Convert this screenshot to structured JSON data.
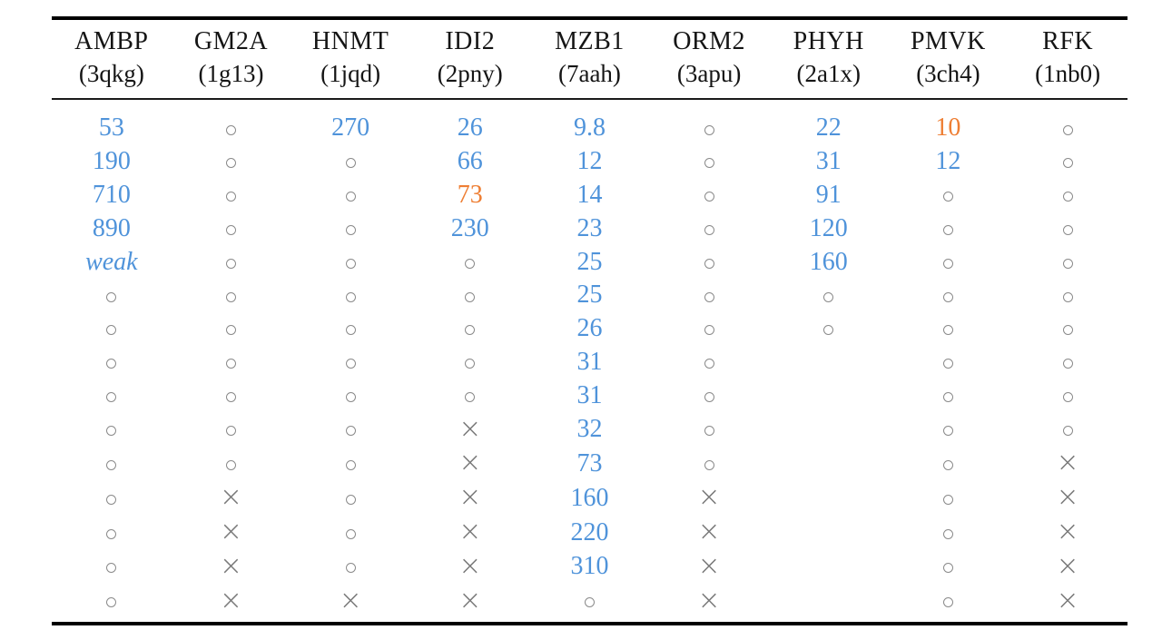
{
  "table": {
    "columns": [
      {
        "gene": "AMBP",
        "pdb": "(3qkg)"
      },
      {
        "gene": "GM2A",
        "pdb": "(1g13)"
      },
      {
        "gene": "HNMT",
        "pdb": "(1jqd)"
      },
      {
        "gene": "IDI2",
        "pdb": "(2pny)"
      },
      {
        "gene": "MZB1",
        "pdb": "(7aah)"
      },
      {
        "gene": "ORM2",
        "pdb": "(3apu)"
      },
      {
        "gene": "PHYH",
        "pdb": "(2a1x)"
      },
      {
        "gene": "PMVK",
        "pdb": "(3ch4)"
      },
      {
        "gene": "RFK",
        "pdb": "(1nb0)"
      }
    ],
    "symbols": {
      "circle": "○",
      "cross": "×"
    },
    "colors": {
      "value_blue": "#4f93da",
      "value_orange": "#ee7e33",
      "marker_gray": "#8a8a8a",
      "rule_black": "#000000"
    },
    "weak_label": "weak",
    "rows": [
      [
        {
          "type": "value",
          "text": "53",
          "color": "blue"
        },
        {
          "type": "circle"
        },
        {
          "type": "value",
          "text": "270",
          "color": "blue"
        },
        {
          "type": "value",
          "text": "26",
          "color": "blue"
        },
        {
          "type": "value",
          "text": "9.8",
          "color": "blue"
        },
        {
          "type": "circle"
        },
        {
          "type": "value",
          "text": "22",
          "color": "blue"
        },
        {
          "type": "value",
          "text": "10",
          "color": "orange"
        },
        {
          "type": "circle"
        }
      ],
      [
        {
          "type": "value",
          "text": "190",
          "color": "blue"
        },
        {
          "type": "circle"
        },
        {
          "type": "circle"
        },
        {
          "type": "value",
          "text": "66",
          "color": "blue"
        },
        {
          "type": "value",
          "text": "12",
          "color": "blue"
        },
        {
          "type": "circle"
        },
        {
          "type": "value",
          "text": "31",
          "color": "blue"
        },
        {
          "type": "value",
          "text": "12",
          "color": "blue"
        },
        {
          "type": "circle"
        }
      ],
      [
        {
          "type": "value",
          "text": "710",
          "color": "blue"
        },
        {
          "type": "circle"
        },
        {
          "type": "circle"
        },
        {
          "type": "value",
          "text": "73",
          "color": "orange"
        },
        {
          "type": "value",
          "text": "14",
          "color": "blue"
        },
        {
          "type": "circle"
        },
        {
          "type": "value",
          "text": "91",
          "color": "blue"
        },
        {
          "type": "circle"
        },
        {
          "type": "circle"
        }
      ],
      [
        {
          "type": "value",
          "text": "890",
          "color": "blue"
        },
        {
          "type": "circle"
        },
        {
          "type": "circle"
        },
        {
          "type": "value",
          "text": "230",
          "color": "blue"
        },
        {
          "type": "value",
          "text": "23",
          "color": "blue"
        },
        {
          "type": "circle"
        },
        {
          "type": "value",
          "text": "120",
          "color": "blue"
        },
        {
          "type": "circle"
        },
        {
          "type": "circle"
        }
      ],
      [
        {
          "type": "weak"
        },
        {
          "type": "circle"
        },
        {
          "type": "circle"
        },
        {
          "type": "circle"
        },
        {
          "type": "value",
          "text": "25",
          "color": "blue"
        },
        {
          "type": "circle"
        },
        {
          "type": "value",
          "text": "160",
          "color": "blue"
        },
        {
          "type": "circle"
        },
        {
          "type": "circle"
        }
      ],
      [
        {
          "type": "circle"
        },
        {
          "type": "circle"
        },
        {
          "type": "circle"
        },
        {
          "type": "circle"
        },
        {
          "type": "value",
          "text": "25",
          "color": "blue"
        },
        {
          "type": "circle"
        },
        {
          "type": "circle"
        },
        {
          "type": "circle"
        },
        {
          "type": "circle"
        }
      ],
      [
        {
          "type": "circle"
        },
        {
          "type": "circle"
        },
        {
          "type": "circle"
        },
        {
          "type": "circle"
        },
        {
          "type": "value",
          "text": "26",
          "color": "blue"
        },
        {
          "type": "circle"
        },
        {
          "type": "circle"
        },
        {
          "type": "circle"
        },
        {
          "type": "circle"
        }
      ],
      [
        {
          "type": "circle"
        },
        {
          "type": "circle"
        },
        {
          "type": "circle"
        },
        {
          "type": "circle"
        },
        {
          "type": "value",
          "text": "31",
          "color": "blue"
        },
        {
          "type": "circle"
        },
        {
          "type": "empty"
        },
        {
          "type": "circle"
        },
        {
          "type": "circle"
        }
      ],
      [
        {
          "type": "circle"
        },
        {
          "type": "circle"
        },
        {
          "type": "circle"
        },
        {
          "type": "circle"
        },
        {
          "type": "value",
          "text": "31",
          "color": "blue"
        },
        {
          "type": "circle"
        },
        {
          "type": "empty"
        },
        {
          "type": "circle"
        },
        {
          "type": "circle"
        }
      ],
      [
        {
          "type": "circle"
        },
        {
          "type": "circle"
        },
        {
          "type": "circle"
        },
        {
          "type": "cross"
        },
        {
          "type": "value",
          "text": "32",
          "color": "blue"
        },
        {
          "type": "circle"
        },
        {
          "type": "empty"
        },
        {
          "type": "circle"
        },
        {
          "type": "circle"
        }
      ],
      [
        {
          "type": "circle"
        },
        {
          "type": "circle"
        },
        {
          "type": "circle"
        },
        {
          "type": "cross"
        },
        {
          "type": "value",
          "text": "73",
          "color": "blue"
        },
        {
          "type": "circle"
        },
        {
          "type": "empty"
        },
        {
          "type": "circle"
        },
        {
          "type": "cross"
        }
      ],
      [
        {
          "type": "circle"
        },
        {
          "type": "cross"
        },
        {
          "type": "circle"
        },
        {
          "type": "cross"
        },
        {
          "type": "value",
          "text": "160",
          "color": "blue"
        },
        {
          "type": "cross"
        },
        {
          "type": "empty"
        },
        {
          "type": "circle"
        },
        {
          "type": "cross"
        }
      ],
      [
        {
          "type": "circle"
        },
        {
          "type": "cross"
        },
        {
          "type": "circle"
        },
        {
          "type": "cross"
        },
        {
          "type": "value",
          "text": "220",
          "color": "blue"
        },
        {
          "type": "cross"
        },
        {
          "type": "empty"
        },
        {
          "type": "circle"
        },
        {
          "type": "cross"
        }
      ],
      [
        {
          "type": "circle"
        },
        {
          "type": "cross"
        },
        {
          "type": "circle"
        },
        {
          "type": "cross"
        },
        {
          "type": "value",
          "text": "310",
          "color": "blue"
        },
        {
          "type": "cross"
        },
        {
          "type": "empty"
        },
        {
          "type": "circle"
        },
        {
          "type": "cross"
        }
      ],
      [
        {
          "type": "circle"
        },
        {
          "type": "cross"
        },
        {
          "type": "cross"
        },
        {
          "type": "cross"
        },
        {
          "type": "circle"
        },
        {
          "type": "cross"
        },
        {
          "type": "empty"
        },
        {
          "type": "circle"
        },
        {
          "type": "cross"
        }
      ]
    ]
  }
}
